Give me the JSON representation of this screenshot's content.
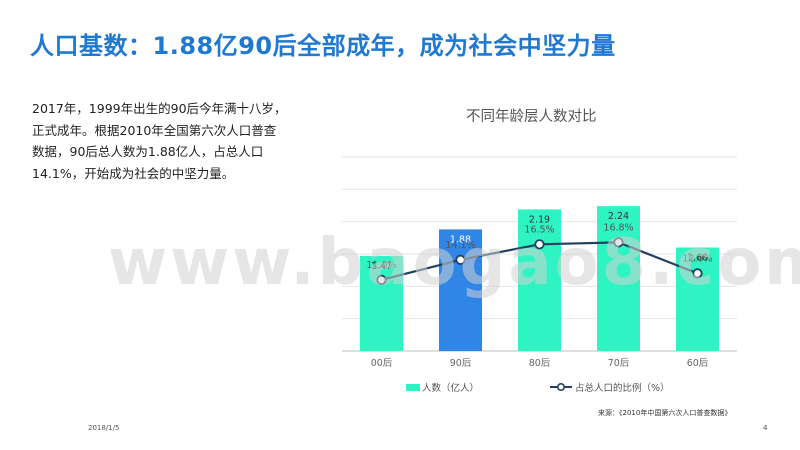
{
  "slide": {
    "title": "人口基数：1.88亿90后全部成年，成为社会中坚力量",
    "body_lines": [
      "2017年，1999年出生的90后今年满十八岁，",
      "正式成年。根据2010年全国第六次人口普查",
      "数据，90后总人数为1.88亿人，占总人口",
      "14.1%，开始成为社会的中坚力量。"
    ],
    "source": "来源：《2010年中国第六次人口普查数据》",
    "date": "2018/1/5",
    "page_number": "4",
    "watermark": "www.baogao8.com"
  },
  "chart_data": {
    "type": "bar",
    "title": "不同年龄层人数对比",
    "categories": [
      "00后",
      "90后",
      "80后",
      "70后",
      "60后"
    ],
    "series": [
      {
        "name": "人数（亿人）",
        "type": "bar",
        "values": [
          1.47,
          1.88,
          2.19,
          2.24,
          1.6
        ],
        "labels": [
          "1.47",
          "1.88",
          "2.19",
          "2.24",
          "1.60"
        ],
        "colors": [
          "#2EF3C3",
          "#2F86E6",
          "#2EF3C3",
          "#2EF3C3",
          "#2EF3C3"
        ]
      },
      {
        "name": "占总人口的比例（%）",
        "type": "line",
        "values": [
          11.0,
          14.1,
          16.5,
          16.8,
          12.0
        ],
        "labels": [
          "11.0%",
          "14.1%",
          "16.5%",
          "16.8%",
          "12.0%"
        ],
        "color": "#23415E"
      }
    ],
    "ylim_bar": [
      0,
      3
    ],
    "ylim_line": [
      0,
      30
    ],
    "grid": true,
    "legend": "bottom"
  }
}
